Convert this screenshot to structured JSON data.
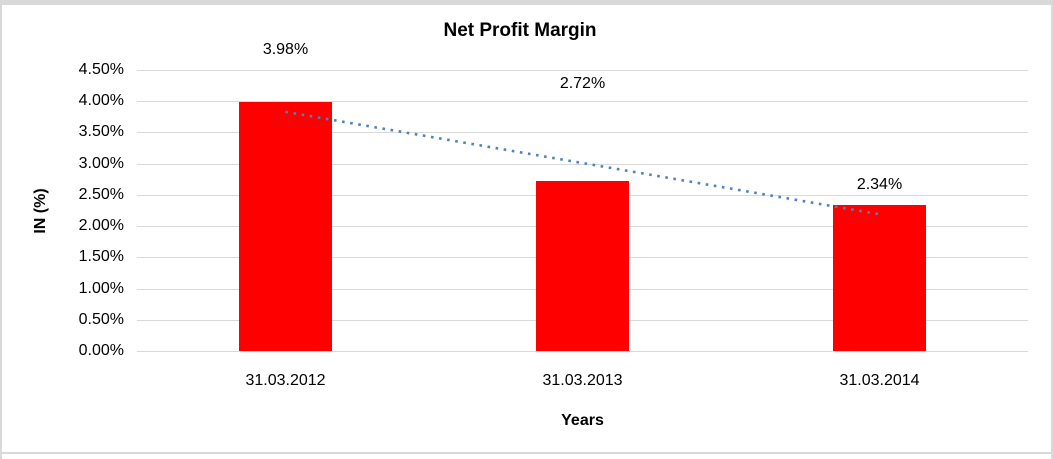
{
  "chart_data": {
    "type": "bar",
    "title": "Net Profit Margin",
    "xlabel": "Years",
    "ylabel": "IN (%)",
    "categories": [
      "31.03.2012",
      "31.03.2013",
      "31.03.2014"
    ],
    "series": [
      {
        "name": "Net Profit Margin",
        "values": [
          3.98,
          2.72,
          2.34
        ]
      }
    ],
    "data_labels": [
      "3.98%",
      "2.72%",
      "2.34%"
    ],
    "y_ticks": [
      {
        "label": "4.50%",
        "value": 4.5
      },
      {
        "label": "4.00%",
        "value": 4.0
      },
      {
        "label": "3.50%",
        "value": 3.5
      },
      {
        "label": "3.00%",
        "value": 3.0
      },
      {
        "label": "2.50%",
        "value": 2.5
      },
      {
        "label": "2.00%",
        "value": 2.0
      },
      {
        "label": "1.50%",
        "value": 1.5
      },
      {
        "label": "1.00%",
        "value": 1.0
      },
      {
        "label": "0.50%",
        "value": 0.5
      },
      {
        "label": "0.00%",
        "value": 0.0
      }
    ],
    "ylim": [
      0,
      4.5
    ],
    "grid": true,
    "legend_position": "none",
    "trendline": {
      "type": "linear",
      "style": "dotted",
      "start_value": 3.83,
      "end_value": 2.19
    },
    "colors": {
      "bar": "#ff0000",
      "trendline": "#4f81bd",
      "gridline": "#d9d9d9",
      "text": "#000000",
      "frame_border": "#d9d9d9",
      "background": "#ffffff"
    }
  }
}
